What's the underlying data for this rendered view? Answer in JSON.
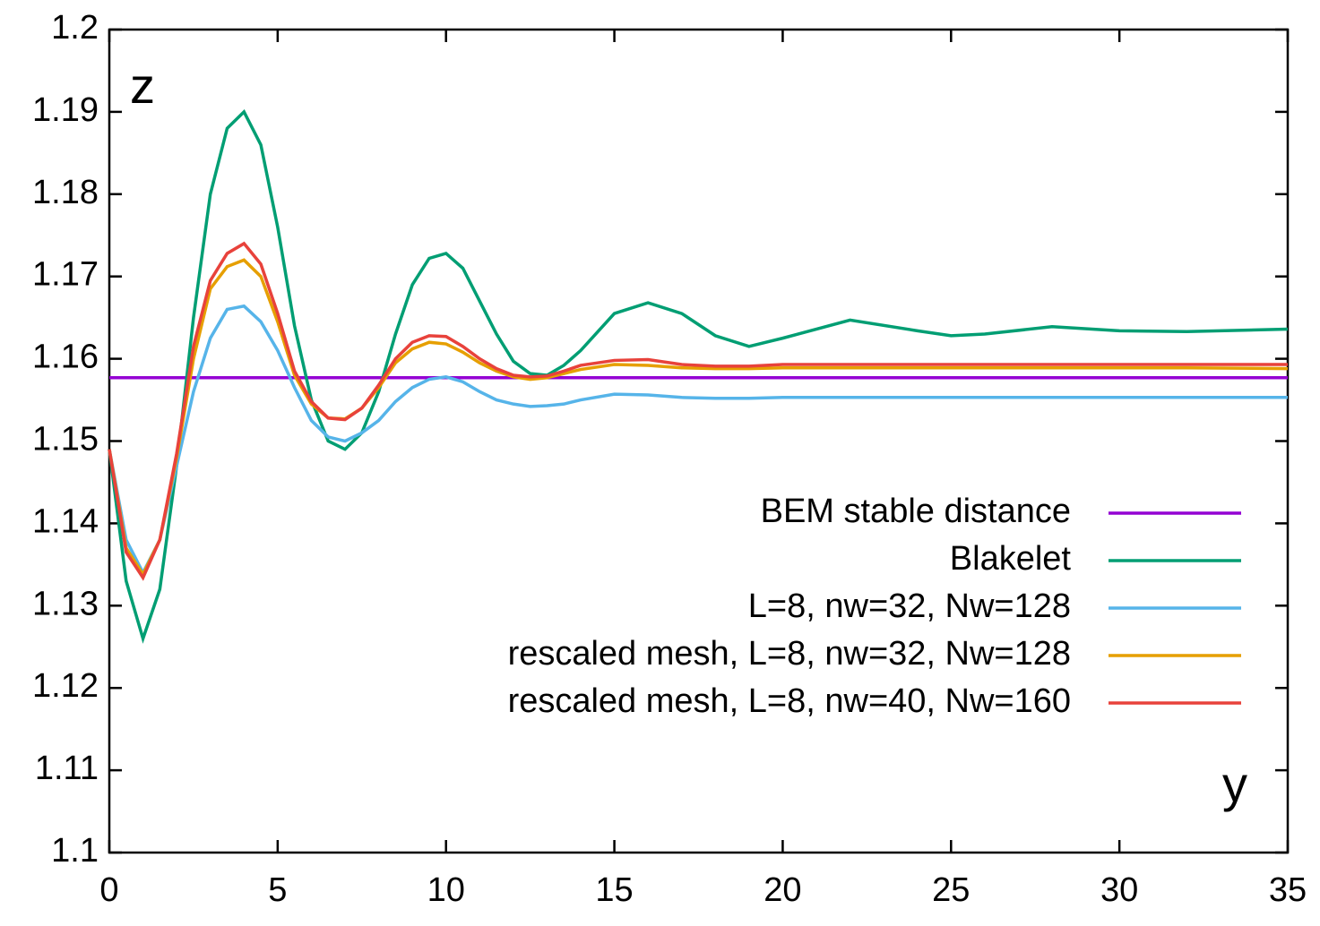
{
  "chart_data": {
    "type": "line",
    "x_label": "y",
    "y_label": "z",
    "x": [
      0,
      0.5,
      1,
      1.5,
      2,
      2.5,
      3,
      3.5,
      4,
      4.5,
      5,
      5.5,
      6,
      6.5,
      7,
      7.5,
      8,
      8.5,
      9,
      9.5,
      10,
      10.5,
      11,
      11.5,
      12,
      12.5,
      13,
      13.5,
      14,
      15,
      16,
      17,
      18,
      19,
      20,
      22,
      24,
      25,
      26,
      28,
      30,
      32,
      35
    ],
    "series": [
      {
        "name": "BEM stable distance",
        "color": "#9400d3",
        "values": [
          1.1577,
          1.1577,
          1.1577,
          1.1577,
          1.1577,
          1.1577,
          1.1577,
          1.1577,
          1.1577,
          1.1577,
          1.1577,
          1.1577,
          1.1577,
          1.1577,
          1.1577,
          1.1577,
          1.1577,
          1.1577,
          1.1577,
          1.1577,
          1.1577,
          1.1577,
          1.1577,
          1.1577,
          1.1577,
          1.1577,
          1.1577,
          1.1577,
          1.1577,
          1.1577,
          1.1577,
          1.1577,
          1.1577,
          1.1577,
          1.1577,
          1.1577,
          1.1577,
          1.1577,
          1.1577,
          1.1577,
          1.1577,
          1.1577,
          1.1577
        ]
      },
      {
        "name": "Blakelet",
        "color": "#009e73",
        "values": [
          1.149,
          1.133,
          1.126,
          1.132,
          1.147,
          1.165,
          1.18,
          1.188,
          1.19,
          1.186,
          1.176,
          1.164,
          1.155,
          1.15,
          1.149,
          1.151,
          1.156,
          1.163,
          1.169,
          1.1722,
          1.1728,
          1.171,
          1.167,
          1.163,
          1.1597,
          1.1582,
          1.158,
          1.1592,
          1.161,
          1.1655,
          1.1668,
          1.1655,
          1.1628,
          1.1615,
          1.1625,
          1.1647,
          1.1634,
          1.1628,
          1.163,
          1.1639,
          1.1634,
          1.1633,
          1.1636
        ]
      },
      {
        "name": "L=8, nw=32, Nw=128",
        "color": "#56b4e9",
        "values": [
          1.149,
          1.138,
          1.134,
          1.138,
          1.147,
          1.156,
          1.1625,
          1.166,
          1.1664,
          1.1645,
          1.161,
          1.1565,
          1.1525,
          1.1505,
          1.15,
          1.151,
          1.1525,
          1.1548,
          1.1565,
          1.1575,
          1.1578,
          1.1572,
          1.156,
          1.155,
          1.1545,
          1.1542,
          1.1543,
          1.1545,
          1.155,
          1.1557,
          1.1556,
          1.1553,
          1.1552,
          1.1552,
          1.1553,
          1.1553,
          1.1553,
          1.1553,
          1.1553,
          1.1553,
          1.1553,
          1.1553,
          1.1553
        ]
      },
      {
        "name": "rescaled mesh, L=8, nw=32, Nw=128",
        "color": "#e69f00",
        "values": [
          1.149,
          1.137,
          1.1338,
          1.138,
          1.148,
          1.16,
          1.1685,
          1.1712,
          1.172,
          1.17,
          1.1645,
          1.158,
          1.1545,
          1.1528,
          1.1527,
          1.154,
          1.1565,
          1.1595,
          1.1612,
          1.162,
          1.1618,
          1.1608,
          1.1595,
          1.1585,
          1.1578,
          1.1575,
          1.1577,
          1.1582,
          1.1587,
          1.1593,
          1.1592,
          1.1589,
          1.1588,
          1.1588,
          1.1589,
          1.1589,
          1.1589,
          1.1589,
          1.1589,
          1.1589,
          1.1589,
          1.1589,
          1.1588
        ]
      },
      {
        "name": "rescaled mesh, L=8, nw=40, Nw=160",
        "color": "#e8423b",
        "values": [
          1.149,
          1.1365,
          1.1334,
          1.138,
          1.1485,
          1.1615,
          1.1695,
          1.1728,
          1.174,
          1.1715,
          1.1655,
          1.1585,
          1.1548,
          1.1528,
          1.1526,
          1.154,
          1.1568,
          1.16,
          1.162,
          1.1628,
          1.1627,
          1.1615,
          1.16,
          1.1588,
          1.158,
          1.1578,
          1.1579,
          1.1585,
          1.1592,
          1.1598,
          1.1599,
          1.1593,
          1.1591,
          1.1591,
          1.1593,
          1.1593,
          1.1593,
          1.1593,
          1.1593,
          1.1593,
          1.1593,
          1.1593,
          1.1593
        ]
      }
    ],
    "xlim": [
      0,
      35
    ],
    "xticks": [
      0,
      5,
      10,
      15,
      20,
      25,
      30,
      35
    ],
    "ylim": [
      1.1,
      1.2
    ],
    "yticks": [
      1.1,
      1.11,
      1.12,
      1.13,
      1.14,
      1.15,
      1.16,
      1.17,
      1.18,
      1.19,
      1.2
    ],
    "legend": "right"
  }
}
